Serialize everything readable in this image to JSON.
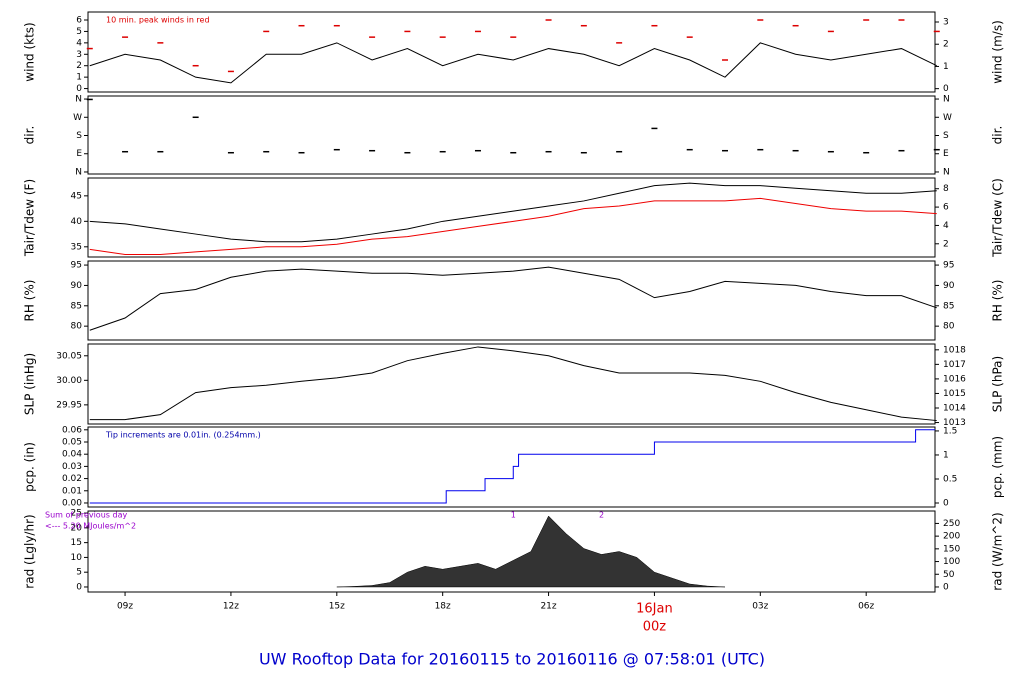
{
  "title": "UW Rooftop Data for 20160115  to  20160116 @ 07:58:01  (UTC)",
  "x": [
    8,
    9,
    10,
    11,
    12,
    13,
    14,
    15,
    16,
    17,
    18,
    19,
    20,
    21,
    22,
    23,
    24,
    25,
    26,
    27,
    28,
    29,
    30,
    31,
    32
  ],
  "xlim": [
    7.95,
    31.95
  ],
  "xticks": [
    {
      "value": 9,
      "label": "09z"
    },
    {
      "value": 12,
      "label": "12z"
    },
    {
      "value": 15,
      "label": "15z"
    },
    {
      "value": 18,
      "label": "18z"
    },
    {
      "value": 21,
      "label": "21z"
    },
    {
      "value": 27,
      "label": "03z"
    },
    {
      "value": 30,
      "label": "06z"
    }
  ],
  "date_marker": {
    "value": 24,
    "label": "16Jan",
    "sublabel": "00z",
    "color": "#dd0000"
  },
  "chart_data": [
    {
      "type": "line",
      "ylabel": "wind (kts)",
      "y2label": "wind (m/s)",
      "ylim": [
        -0.3,
        6.7
      ],
      "yticks": [
        0,
        1,
        2,
        3,
        4,
        5,
        6
      ],
      "y2lim": [
        -0.15,
        3.45
      ],
      "y2ticks": [
        0,
        1,
        2,
        3
      ],
      "annotations": [
        {
          "text": "10 min. peak winds in red",
          "color": "#dd0000"
        }
      ],
      "series": [
        {
          "type": "line",
          "color": "#000000",
          "values": [
            2,
            3,
            2.5,
            1,
            0.5,
            3,
            3,
            4,
            2.5,
            3.5,
            2,
            3,
            2.5,
            3.5,
            3,
            2,
            3.5,
            2.5,
            1,
            4,
            3,
            2.5,
            3,
            3.5,
            2
          ]
        },
        {
          "type": "marker",
          "color": "#dd0000",
          "values": [
            3.5,
            4.5,
            4,
            2,
            1.5,
            5,
            5.5,
            5.5,
            4.5,
            5,
            4.5,
            5,
            4.5,
            6,
            5.5,
            4,
            5.5,
            4.5,
            2.5,
            6,
            5.5,
            5,
            6,
            6,
            5
          ]
        }
      ]
    },
    {
      "type": "scatter",
      "ylabel": "dir.",
      "y2label": "dir.",
      "ylim": [
        -10,
        375
      ],
      "yticks": [
        {
          "value": 0,
          "label": "N"
        },
        {
          "value": 90,
          "label": "E"
        },
        {
          "value": 180,
          "label": "S"
        },
        {
          "value": 270,
          "label": "W"
        },
        {
          "value": 360,
          "label": "N"
        }
      ],
      "y2lim": [
        -10,
        375
      ],
      "y2ticks": [
        {
          "value": 0,
          "label": "N"
        },
        {
          "value": 90,
          "label": "E"
        },
        {
          "value": 180,
          "label": "S"
        },
        {
          "value": 270,
          "label": "W"
        },
        {
          "value": 360,
          "label": "N"
        }
      ],
      "series": [
        {
          "type": "marker",
          "color": "#000000",
          "values": [
            358,
            100,
            100,
            270,
            95,
            100,
            95,
            110,
            105,
            95,
            100,
            105,
            95,
            100,
            95,
            100,
            215,
            110,
            105,
            110,
            105,
            100,
            95,
            105,
            110
          ]
        }
      ]
    },
    {
      "type": "line",
      "ylabel": "Tair/Tdew (F)",
      "y2label": "Tair/Tdew (C)",
      "ylim": [
        33,
        48.5
      ],
      "yticks": [
        35,
        40,
        45
      ],
      "y2lim": [
        0.56,
        9.17
      ],
      "y2ticks": [
        2,
        4,
        6,
        8
      ],
      "series": [
        {
          "type": "line",
          "color": "#000000",
          "values": [
            40,
            39.5,
            38.5,
            37.5,
            36.5,
            36,
            36,
            36.5,
            37.5,
            38.5,
            40,
            41,
            42,
            43,
            44,
            45.5,
            47,
            47.5,
            47,
            47,
            46.5,
            46,
            45.5,
            45.5,
            46
          ]
        },
        {
          "type": "line",
          "color": "#ee0000",
          "values": [
            34.5,
            33.5,
            33.5,
            34,
            34.5,
            35,
            35,
            35.5,
            36.5,
            37,
            38,
            39,
            40,
            41,
            42.5,
            43,
            44,
            44,
            44,
            44.5,
            43.5,
            42.5,
            42,
            42,
            41.5
          ]
        }
      ]
    },
    {
      "type": "line",
      "ylabel": "RH (%)",
      "y2label": "RH (%)",
      "ylim": [
        76.6,
        96
      ],
      "yticks": [
        80,
        85,
        90,
        95
      ],
      "y2lim": [
        76.6,
        96
      ],
      "y2ticks": [
        80,
        85,
        90,
        95
      ],
      "series": [
        {
          "type": "line",
          "color": "#000000",
          "values": [
            79,
            82,
            88,
            89,
            92,
            93.5,
            94,
            93.5,
            93,
            93,
            92.5,
            93,
            93.5,
            94.5,
            93,
            91.5,
            87,
            88.5,
            91,
            90.5,
            90,
            88.5,
            87.5,
            87.5,
            84.5
          ]
        }
      ]
    },
    {
      "type": "line",
      "ylabel": "SLP (inHg)",
      "y2label": "SLP (hPa)",
      "ylim": [
        29.911,
        30.074
      ],
      "yticks": [
        {
          "value": 29.95,
          "label": "29.95"
        },
        {
          "value": 30,
          "label": "30.00"
        },
        {
          "value": 30.05,
          "label": "30.05"
        }
      ],
      "y2lim": [
        1012.9,
        1018.4
      ],
      "y2ticks": [
        1013,
        1014,
        1015,
        1016,
        1017,
        1018
      ],
      "series": [
        {
          "type": "line",
          "color": "#000000",
          "values": [
            29.92,
            29.92,
            29.93,
            29.975,
            29.985,
            29.99,
            29.998,
            30.005,
            30.015,
            30.04,
            30.055,
            30.068,
            30.06,
            30.05,
            30.03,
            30.015,
            30.015,
            30.015,
            30.01,
            29.998,
            29.975,
            29.955,
            29.94,
            29.925,
            29.918
          ]
        }
      ]
    },
    {
      "type": "step",
      "ylabel": "pcp. (in)",
      "y2label": "pcp. (mm)",
      "ylim": [
        -0.0033,
        0.0623
      ],
      "yticks": [
        {
          "value": 0,
          "label": "0.00"
        },
        {
          "value": 0.01,
          "label": "0.01"
        },
        {
          "value": 0.02,
          "label": "0.02"
        },
        {
          "value": 0.03,
          "label": "0.03"
        },
        {
          "value": 0.04,
          "label": "0.04"
        },
        {
          "value": 0.05,
          "label": "0.05"
        },
        {
          "value": 0.06,
          "label": "0.06"
        }
      ],
      "y2lim": [
        -0.083,
        1.582
      ],
      "y2ticks": [
        0,
        0.5,
        1,
        1.5
      ],
      "annotations": [
        {
          "text": "Tip increments are 0.01in. (0.254mm.)",
          "color": "#0000aa"
        }
      ],
      "series": [
        {
          "type": "step",
          "color": "#0000ee",
          "x": [
            8,
            18.1,
            19.2,
            20.0,
            20.15,
            24.0,
            31.4
          ],
          "values": [
            0,
            0.01,
            0.02,
            0.03,
            0.04,
            0.05,
            0.06
          ]
        }
      ]
    },
    {
      "type": "area",
      "ylabel": "rad (Lgly/hr)",
      "y2label": "rad (W/m^2)",
      "ylim": [
        -1.7,
        25.7
      ],
      "yticks": [
        0,
        5,
        10,
        15,
        20,
        25
      ],
      "y2lim": [
        -19.8,
        298.9
      ],
      "y2ticks": [
        0,
        50,
        100,
        150,
        200,
        250
      ],
      "annotations": [
        {
          "text": "Sum of previous day",
          "color": "#9900cc"
        },
        {
          "text": "<--- 5.20 MJoules/m^2",
          "color": "#9900cc"
        }
      ],
      "day_markers": [
        {
          "text": "1",
          "x": 20,
          "color": "#9900cc"
        },
        {
          "text": "2",
          "x": 22.5,
          "color": "#9900cc"
        }
      ],
      "series": [
        {
          "type": "area",
          "color": "#333333",
          "x": [
            15,
            15.5,
            16,
            16.5,
            17,
            17.5,
            18,
            18.5,
            19,
            19.5,
            20,
            20.5,
            21,
            21.5,
            22,
            22.5,
            23,
            23.5,
            24,
            24.5,
            25,
            25.5,
            26
          ],
          "values": [
            0,
            0.2,
            0.5,
            1.5,
            5,
            7,
            6,
            7,
            8,
            6,
            9,
            12,
            24,
            18,
            13,
            11,
            12,
            10,
            5,
            3,
            1,
            0.3,
            0
          ]
        }
      ]
    }
  ]
}
